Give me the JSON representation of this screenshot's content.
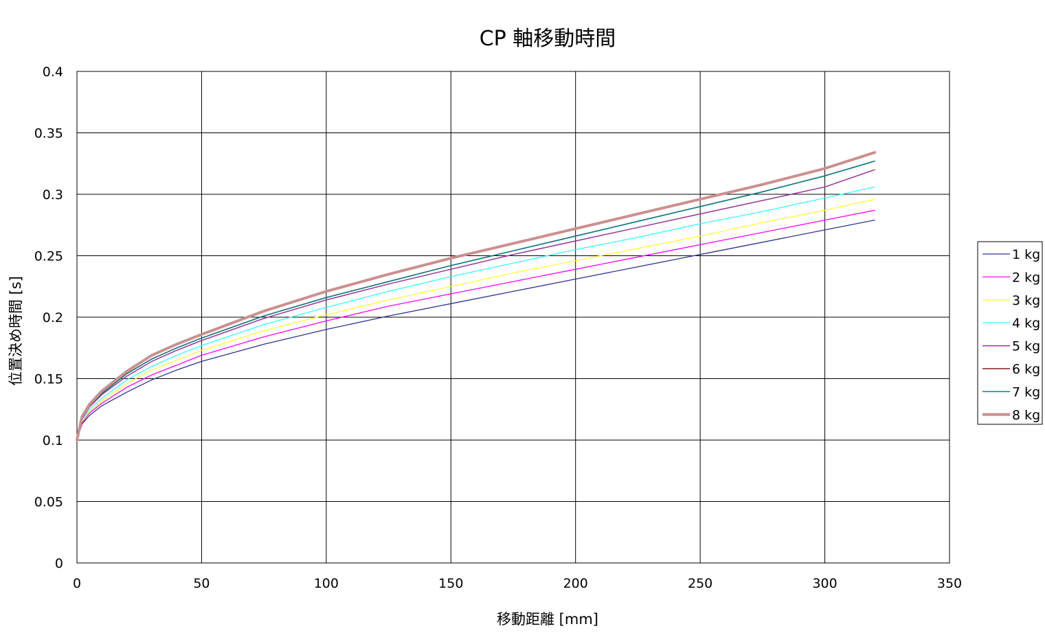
{
  "chart_data": {
    "type": "line",
    "title": "CP 軸移動時間",
    "xlabel": "移動距離 [mm]",
    "ylabel": "位置決め時間 [s]",
    "xlim": [
      0,
      350
    ],
    "ylim": [
      0,
      0.4
    ],
    "xticks": [
      0,
      50,
      100,
      150,
      200,
      250,
      300,
      350
    ],
    "yticks": [
      0,
      0.05,
      0.1,
      0.15,
      0.2,
      0.25,
      0.3,
      0.35,
      0.4
    ],
    "xtick_labels": [
      "0",
      "50",
      "100",
      "150",
      "200",
      "250",
      "300",
      "350"
    ],
    "ytick_labels": [
      "0",
      "0.05",
      "0.1",
      "0.15",
      "0.2",
      "0.25",
      "0.3",
      "0.35",
      "0.4"
    ],
    "grid": true,
    "legend_position": "right",
    "x": [
      0,
      2,
      5,
      10,
      20,
      30,
      40,
      50,
      75,
      100,
      125,
      150,
      175,
      200,
      225,
      250,
      275,
      300,
      320
    ],
    "series": [
      {
        "name": "1 kg",
        "color": "#2e3192",
        "width": 1.3,
        "values": [
          0.1,
          0.113,
          0.12,
          0.128,
          0.139,
          0.149,
          0.157,
          0.164,
          0.178,
          0.19,
          0.201,
          0.211,
          0.221,
          0.231,
          0.241,
          0.251,
          0.261,
          0.271,
          0.279
        ]
      },
      {
        "name": "2 kg",
        "color": "#ff00ff",
        "width": 1.3,
        "values": [
          0.1,
          0.114,
          0.122,
          0.13,
          0.143,
          0.153,
          0.161,
          0.169,
          0.184,
          0.197,
          0.209,
          0.219,
          0.229,
          0.239,
          0.249,
          0.259,
          0.269,
          0.279,
          0.287
        ]
      },
      {
        "name": "3 kg",
        "color": "#ffff33",
        "width": 1.3,
        "values": [
          0.1,
          0.115,
          0.123,
          0.132,
          0.146,
          0.157,
          0.165,
          0.173,
          0.189,
          0.202,
          0.214,
          0.225,
          0.236,
          0.246,
          0.256,
          0.266,
          0.277,
          0.287,
          0.296
        ]
      },
      {
        "name": "4 kg",
        "color": "#33ffff",
        "width": 1.3,
        "values": [
          0.1,
          0.116,
          0.125,
          0.134,
          0.149,
          0.16,
          0.169,
          0.177,
          0.194,
          0.208,
          0.221,
          0.233,
          0.244,
          0.255,
          0.265,
          0.276,
          0.286,
          0.297,
          0.306
        ]
      },
      {
        "name": "5 kg",
        "color": "#993399",
        "width": 1.5,
        "values": [
          0.1,
          0.117,
          0.127,
          0.137,
          0.152,
          0.164,
          0.173,
          0.181,
          0.199,
          0.214,
          0.227,
          0.239,
          0.251,
          0.262,
          0.273,
          0.284,
          0.295,
          0.306,
          0.32
        ]
      },
      {
        "name": "6 kg",
        "color": "#8b1a1a",
        "width": 1.5,
        "values": [
          0.1,
          0.118,
          0.128,
          0.138,
          0.154,
          0.166,
          0.175,
          0.183,
          0.201,
          0.216,
          0.229,
          0.242,
          0.254,
          0.266,
          0.278,
          0.29,
          0.302,
          0.315,
          0.327
        ]
      },
      {
        "name": "7 kg",
        "color": "#008080",
        "width": 1.5,
        "values": [
          0.1,
          0.118,
          0.128,
          0.138,
          0.154,
          0.166,
          0.175,
          0.183,
          0.201,
          0.216,
          0.229,
          0.242,
          0.254,
          0.266,
          0.278,
          0.29,
          0.302,
          0.315,
          0.327
        ]
      },
      {
        "name": "8 kg",
        "color": "#cc8f8f",
        "width": 4,
        "values": [
          0.1,
          0.119,
          0.129,
          0.14,
          0.156,
          0.169,
          0.178,
          0.186,
          0.205,
          0.221,
          0.235,
          0.248,
          0.26,
          0.272,
          0.284,
          0.296,
          0.308,
          0.321,
          0.334
        ]
      }
    ]
  }
}
